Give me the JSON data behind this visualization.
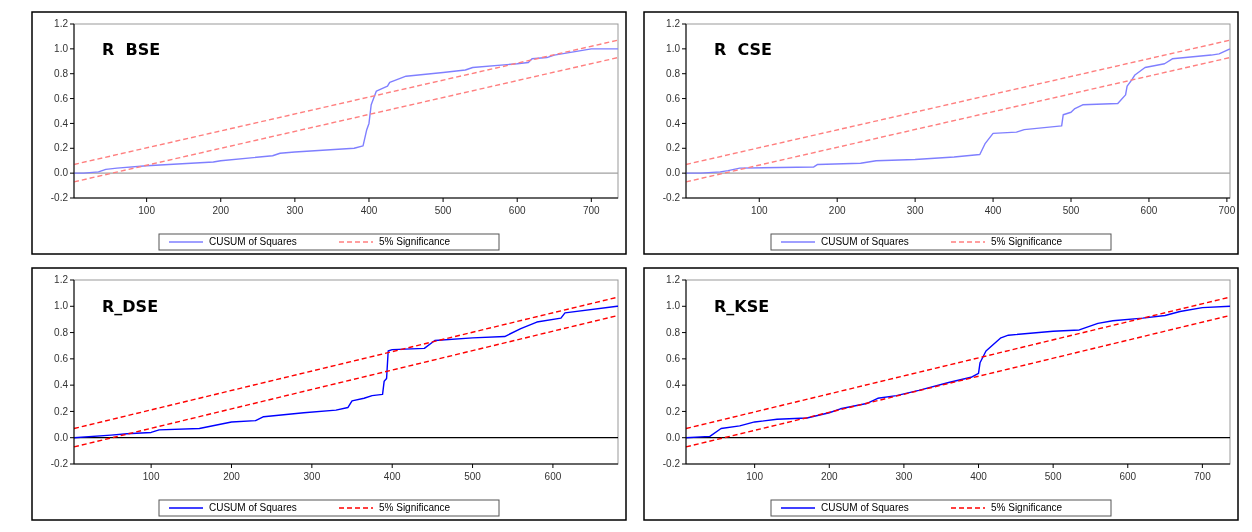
{
  "chart_data": [
    {
      "type": "line",
      "title": "R  BSE",
      "xlim": [
        2,
        736
      ],
      "xticks": [
        100,
        200,
        300,
        400,
        500,
        600,
        700
      ],
      "ylim": [
        -0.2,
        1.2
      ],
      "yticks": [
        {
          "value": -0.2,
          "label": "-0.2"
        },
        {
          "value": 0,
          "label": "0.0"
        },
        {
          "value": 0.2,
          "label": "0.2"
        },
        {
          "value": 0.4,
          "label": "0.4"
        },
        {
          "value": 0.6,
          "label": "0.6"
        },
        {
          "value": 0.8,
          "label": "0.8"
        },
        {
          "value": 1,
          "label": "1.0"
        },
        {
          "value": 1.2,
          "label": "1.2"
        }
      ],
      "grid": false,
      "legend": "bottom",
      "marker": "none",
      "ref_lines": [
        {
          "axis": "y",
          "value": 0,
          "color": "#a0a0a0"
        }
      ],
      "series": [
        {
          "name": "CUSUM of Squares",
          "color": "#7f7fff",
          "line_style": "solid",
          "x": [
            2,
            15,
            35,
            45,
            60,
            100,
            190,
            200,
            270,
            280,
            300,
            380,
            392,
            397,
            400,
            403,
            410,
            425,
            428,
            450,
            500,
            530,
            540,
            600,
            615,
            620,
            640,
            650,
            690,
            700,
            736
          ],
          "values": [
            0,
            0,
            0.01,
            0.03,
            0.04,
            0.06,
            0.09,
            0.1,
            0.14,
            0.16,
            0.17,
            0.2,
            0.22,
            0.35,
            0.4,
            0.55,
            0.66,
            0.7,
            0.73,
            0.78,
            0.81,
            0.83,
            0.85,
            0.88,
            0.89,
            0.92,
            0.93,
            0.95,
            0.99,
            1,
            1
          ]
        },
        {
          "name": "5% Significance",
          "color": "#ff7f7f",
          "line_style": "dashed",
          "x": [
            2,
            736
          ],
          "values": [
            -0.07,
            0.93
          ]
        },
        {
          "color": "#ff7f7f",
          "line_style": "dashed",
          "x": [
            2,
            736
          ],
          "values": [
            0.07,
            1.07
          ]
        }
      ]
    },
    {
      "type": "line",
      "title": "R  CSE",
      "xlim": [
        6,
        704
      ],
      "xticks": [
        100,
        200,
        300,
        400,
        500,
        600,
        700
      ],
      "ylim": [
        -0.2,
        1.2
      ],
      "yticks": [
        {
          "value": -0.2,
          "label": "-0.2"
        },
        {
          "value": 0,
          "label": "0.0"
        },
        {
          "value": 0.2,
          "label": "0.2"
        },
        {
          "value": 0.4,
          "label": "0.4"
        },
        {
          "value": 0.6,
          "label": "0.6"
        },
        {
          "value": 0.8,
          "label": "0.8"
        },
        {
          "value": 1,
          "label": "1.0"
        },
        {
          "value": 1.2,
          "label": "1.2"
        }
      ],
      "grid": false,
      "legend": "bottom",
      "marker": "none",
      "ref_lines": [
        {
          "axis": "y",
          "value": 0,
          "color": "#a0a0a0"
        }
      ],
      "series": [
        {
          "name": "CUSUM of Squares",
          "color": "#7f7fff",
          "line_style": "solid",
          "x": [
            6,
            25,
            50,
            60,
            75,
            170,
            175,
            230,
            250,
            300,
            350,
            383,
            390,
            400,
            430,
            440,
            488,
            490,
            500,
            505,
            515,
            560,
            570,
            572,
            578,
            582,
            595,
            620,
            630,
            680,
            690,
            704
          ],
          "values": [
            0,
            0,
            0.01,
            0.02,
            0.04,
            0.05,
            0.07,
            0.08,
            0.1,
            0.11,
            0.13,
            0.15,
            0.24,
            0.32,
            0.33,
            0.35,
            0.38,
            0.47,
            0.49,
            0.52,
            0.55,
            0.56,
            0.63,
            0.7,
            0.75,
            0.79,
            0.85,
            0.88,
            0.92,
            0.95,
            0.96,
            1
          ]
        },
        {
          "name": "5% Significance",
          "color": "#ff7f7f",
          "line_style": "dashed",
          "x": [
            6,
            704
          ],
          "values": [
            -0.07,
            0.93
          ]
        },
        {
          "color": "#ff7f7f",
          "line_style": "dashed",
          "x": [
            6,
            704
          ],
          "values": [
            0.07,
            1.07
          ]
        }
      ]
    },
    {
      "type": "line",
      "title": "R_DSE",
      "xlim": [
        4,
        681
      ],
      "xticks": [
        100,
        200,
        300,
        400,
        500,
        600
      ],
      "ylim": [
        -0.2,
        1.2
      ],
      "yticks": [
        {
          "value": -0.2,
          "label": "-0.2"
        },
        {
          "value": 0,
          "label": "0.0"
        },
        {
          "value": 0.2,
          "label": "0.2"
        },
        {
          "value": 0.4,
          "label": "0.4"
        },
        {
          "value": 0.6,
          "label": "0.6"
        },
        {
          "value": 0.8,
          "label": "0.8"
        },
        {
          "value": 1,
          "label": "1.0"
        },
        {
          "value": 1.2,
          "label": "1.2"
        }
      ],
      "grid": false,
      "legend": "bottom",
      "marker": "none",
      "ref_lines": [
        {
          "axis": "y",
          "value": 0,
          "color": "#000000"
        }
      ],
      "series": [
        {
          "name": "CUSUM of Squares",
          "color": "#0000ff",
          "line_style": "solid",
          "x": [
            4,
            50,
            70,
            100,
            110,
            160,
            200,
            230,
            240,
            290,
            330,
            345,
            350,
            365,
            375,
            388,
            390,
            393,
            395,
            400,
            440,
            453,
            500,
            540,
            560,
            580,
            610,
            615,
            680,
            681
          ],
          "values": [
            0,
            0.02,
            0.03,
            0.04,
            0.06,
            0.07,
            0.12,
            0.13,
            0.16,
            0.19,
            0.21,
            0.23,
            0.28,
            0.3,
            0.32,
            0.33,
            0.43,
            0.45,
            0.66,
            0.67,
            0.68,
            0.74,
            0.76,
            0.77,
            0.83,
            0.88,
            0.91,
            0.95,
            1,
            1
          ]
        },
        {
          "name": "5% Significance",
          "color": "#ff0000",
          "line_style": "dashed",
          "x": [
            4,
            681
          ],
          "values": [
            -0.07,
            0.93
          ]
        },
        {
          "color": "#ff0000",
          "line_style": "dashed",
          "x": [
            4,
            681
          ],
          "values": [
            0.07,
            1.07
          ]
        }
      ]
    },
    {
      "type": "line",
      "title": "R_KSE",
      "xlim": [
        8,
        737
      ],
      "xticks": [
        100,
        200,
        300,
        400,
        500,
        600,
        700
      ],
      "ylim": [
        -0.2,
        1.2
      ],
      "yticks": [
        {
          "value": -0.2,
          "label": "-0.2"
        },
        {
          "value": 0,
          "label": "0.0"
        },
        {
          "value": 0.2,
          "label": "0.2"
        },
        {
          "value": 0.4,
          "label": "0.4"
        },
        {
          "value": 0.6,
          "label": "0.6"
        },
        {
          "value": 0.8,
          "label": "0.8"
        },
        {
          "value": 1,
          "label": "1.0"
        },
        {
          "value": 1.2,
          "label": "1.2"
        }
      ],
      "grid": false,
      "legend": "bottom",
      "marker": "none",
      "ref_lines": [
        {
          "axis": "y",
          "value": 0,
          "color": "#000000"
        }
      ],
      "series": [
        {
          "name": "CUSUM of Squares",
          "color": "#0000ff",
          "line_style": "solid",
          "x": [
            8,
            40,
            55,
            80,
            100,
            130,
            170,
            200,
            215,
            250,
            265,
            290,
            320,
            360,
            390,
            400,
            402,
            410,
            430,
            440,
            500,
            535,
            560,
            580,
            620,
            650,
            670,
            700,
            737
          ],
          "values": [
            0,
            0.01,
            0.07,
            0.09,
            0.12,
            0.14,
            0.15,
            0.19,
            0.22,
            0.26,
            0.3,
            0.32,
            0.36,
            0.42,
            0.46,
            0.49,
            0.57,
            0.66,
            0.76,
            0.78,
            0.81,
            0.82,
            0.87,
            0.89,
            0.91,
            0.93,
            0.96,
            0.99,
            1
          ]
        },
        {
          "name": "5% Significance",
          "color": "#ff0000",
          "line_style": "dashed",
          "x": [
            8,
            737
          ],
          "values": [
            -0.07,
            0.93
          ]
        },
        {
          "color": "#ff0000",
          "line_style": "dashed",
          "x": [
            8,
            737
          ],
          "values": [
            0.07,
            1.07
          ]
        }
      ]
    }
  ]
}
